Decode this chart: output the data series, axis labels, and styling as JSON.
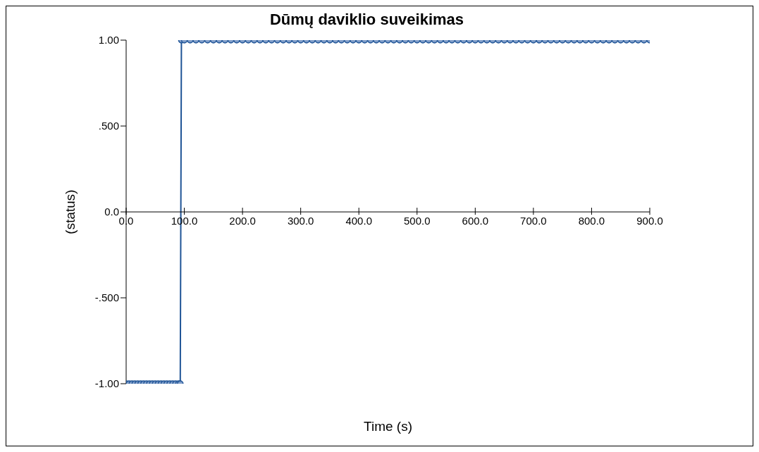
{
  "chart_data": {
    "type": "line",
    "title": "Dūmų daviklio suveikimas",
    "xlabel": "Time (s)",
    "ylabel": "(status)",
    "x": [
      0,
      5,
      10,
      15,
      20,
      25,
      30,
      35,
      40,
      45,
      50,
      55,
      60,
      65,
      70,
      75,
      80,
      85,
      90,
      93,
      95,
      100,
      110,
      120,
      130,
      140,
      150,
      160,
      170,
      180,
      190,
      200,
      210,
      220,
      230,
      240,
      250,
      260,
      270,
      280,
      290,
      300,
      310,
      320,
      330,
      340,
      350,
      360,
      370,
      380,
      390,
      400,
      410,
      420,
      430,
      440,
      450,
      460,
      470,
      480,
      490,
      500,
      510,
      520,
      530,
      540,
      550,
      560,
      570,
      580,
      590,
      600,
      610,
      620,
      630,
      640,
      650,
      660,
      670,
      680,
      690,
      700,
      710,
      720,
      730,
      740,
      750,
      760,
      770,
      780,
      790,
      800,
      810,
      820,
      830,
      840,
      850,
      860,
      870,
      880,
      890,
      900
    ],
    "series": [
      {
        "color": "#1f5496",
        "values": [
          -1,
          -1,
          -1,
          -1,
          -1,
          -1,
          -1,
          -1,
          -1,
          -1,
          -1,
          -1,
          -1,
          -1,
          -1,
          -1,
          -1,
          -1,
          -1,
          -1,
          1,
          1,
          1,
          1,
          1,
          1,
          1,
          1,
          1,
          1,
          1,
          1,
          1,
          1,
          1,
          1,
          1,
          1,
          1,
          1,
          1,
          1,
          1,
          1,
          1,
          1,
          1,
          1,
          1,
          1,
          1,
          1,
          1,
          1,
          1,
          1,
          1,
          1,
          1,
          1,
          1,
          1,
          1,
          1,
          1,
          1,
          1,
          1,
          1,
          1,
          1,
          1,
          1,
          1,
          1,
          1,
          1,
          1,
          1,
          1,
          1,
          1,
          1,
          1,
          1,
          1,
          1,
          1,
          1,
          1,
          1,
          1,
          1,
          1,
          1,
          1,
          1,
          1,
          1,
          1,
          1,
          1
        ]
      }
    ],
    "xlim": [
      0,
      900
    ],
    "xticks": [
      {
        "value": 0,
        "label": "0.0"
      },
      {
        "value": 100,
        "label": "100.0"
      },
      {
        "value": 200,
        "label": "200.0"
      },
      {
        "value": 300,
        "label": "300.0"
      },
      {
        "value": 400,
        "label": "400.0"
      },
      {
        "value": 500,
        "label": "500.0"
      },
      {
        "value": 600,
        "label": "600.0"
      },
      {
        "value": 700,
        "label": "700.0"
      },
      {
        "value": 800,
        "label": "800.0"
      },
      {
        "value": 900,
        "label": "900.0"
      }
    ],
    "ylim": [
      -1,
      1
    ],
    "yticks": [
      {
        "value": -1,
        "label": "-1.00"
      },
      {
        "value": -0.5,
        "label": "-.500"
      },
      {
        "value": 0,
        "label": "0.0"
      },
      {
        "value": 0.5,
        "label": ".500"
      },
      {
        "value": 1,
        "label": "1.00"
      }
    ],
    "marker": "circle",
    "line_style": "solid"
  }
}
